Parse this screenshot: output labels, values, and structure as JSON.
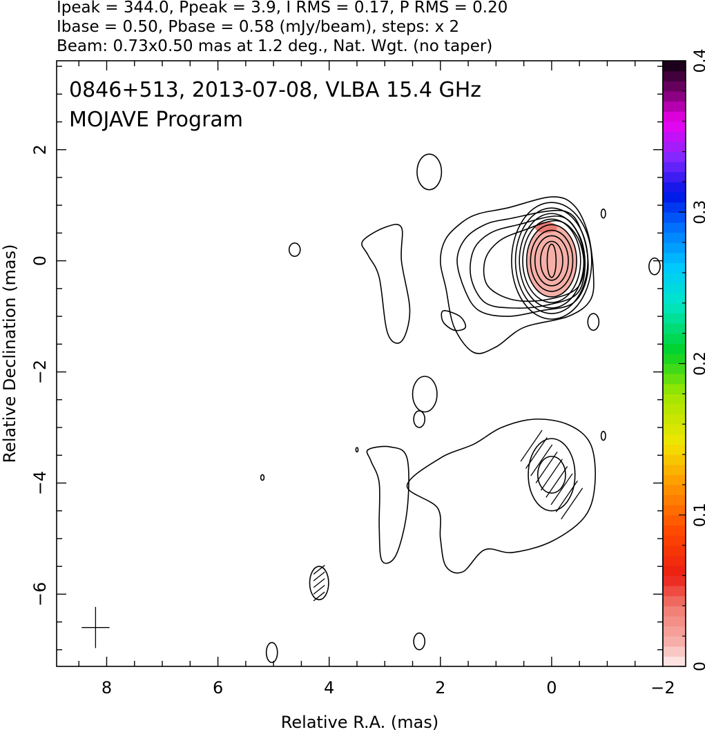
{
  "header": {
    "line1": "Ipeak = 344.0, Ppeak = 3.9, I RMS = 0.17, P RMS = 0.20",
    "line2": "Ibase = 0.50, Pbase = 0.58 (mJy/beam), steps: x 2",
    "line3": "Beam: 0.73x0.50 mas at 1.2 deg., Nat. Wgt. (no taper)"
  },
  "chart_data": {
    "type": "contour map",
    "title": "0846+513, 2013-07-08, VLBA 15.4 GHz",
    "subtitle": "MOJAVE Program",
    "xlabel": "Relative R.A. (mas)",
    "ylabel": "Relative Declination (mas)",
    "xlim": [
      8.9,
      -2.0
    ],
    "ylim": [
      -7.3,
      3.6
    ],
    "x_ticks": [
      8,
      6,
      4,
      2,
      0,
      -2
    ],
    "y_ticks": [
      2,
      0,
      -2,
      -4,
      -6
    ],
    "x_tick_labels": [
      "8",
      "6",
      "4",
      "2",
      "0",
      "−2"
    ],
    "y_tick_labels": [
      "2",
      "0",
      "−2",
      "−4",
      "−6"
    ],
    "colorbar": {
      "min": 0,
      "max": 0.4,
      "ticks": [
        0,
        0.1,
        0.2,
        0.3,
        0.4
      ],
      "tick_labels": [
        "0",
        "0.1",
        "0.2",
        "0.3",
        "0.4"
      ]
    },
    "core": {
      "x": 0.0,
      "y": 0.0,
      "contour_radii": [
        [
          0.08,
          0.3
        ],
        [
          0.2,
          0.35
        ],
        [
          0.3,
          0.45
        ],
        [
          0.38,
          0.55
        ],
        [
          0.45,
          0.65
        ],
        [
          0.52,
          0.75
        ],
        [
          0.58,
          0.85
        ],
        [
          0.65,
          0.95
        ],
        [
          0.72,
          1.05
        ]
      ]
    },
    "jet_contours": [
      [
        [
          0.8,
          0.95
        ],
        [
          1.3,
          0.85
        ],
        [
          1.6,
          0.7
        ],
        [
          1.9,
          0.4
        ],
        [
          2.0,
          0.0
        ],
        [
          1.9,
          -0.5
        ],
        [
          1.75,
          -1.2
        ],
        [
          1.4,
          -1.65
        ],
        [
          1.0,
          -1.55
        ],
        [
          0.5,
          -1.2
        ],
        [
          -0.3,
          -1.0
        ],
        [
          -0.7,
          -0.7
        ],
        [
          -0.75,
          -0.2
        ],
        [
          -0.65,
          0.5
        ],
        [
          -0.4,
          1.0
        ],
        [
          0.0,
          1.15
        ]
      ],
      [
        [
          0.8,
          0.75
        ],
        [
          1.2,
          0.65
        ],
        [
          1.55,
          0.4
        ],
        [
          1.7,
          0.0
        ],
        [
          1.55,
          -0.55
        ],
        [
          1.3,
          -0.9
        ],
        [
          0.8,
          -1.0
        ],
        [
          0.2,
          -0.9
        ],
        [
          -0.4,
          -0.75
        ],
        [
          -0.65,
          -0.2
        ],
        [
          -0.55,
          0.5
        ],
        [
          -0.2,
          0.9
        ]
      ],
      [
        [
          0.6,
          0.65
        ],
        [
          1.1,
          0.5
        ],
        [
          1.4,
          0.2
        ],
        [
          1.45,
          -0.3
        ],
        [
          1.2,
          -0.75
        ],
        [
          0.7,
          -0.85
        ],
        [
          0.1,
          -0.8
        ],
        [
          -0.45,
          -0.6
        ],
        [
          -0.6,
          -0.1
        ],
        [
          -0.5,
          0.45
        ],
        [
          -0.15,
          0.8
        ]
      ],
      [
        [
          0.5,
          0.55
        ],
        [
          0.95,
          0.35
        ],
        [
          1.2,
          0.0
        ],
        [
          1.15,
          -0.45
        ],
        [
          0.7,
          -0.7
        ],
        [
          0.1,
          -0.7
        ],
        [
          -0.45,
          -0.5
        ],
        [
          -0.58,
          -0.05
        ],
        [
          -0.45,
          0.45
        ],
        [
          -0.1,
          0.72
        ]
      ]
    ],
    "south_outer": [
      [
        1.4,
        -3.3
      ],
      [
        2.0,
        -3.55
      ],
      [
        2.6,
        -4.05
      ],
      [
        2.05,
        -4.45
      ],
      [
        2.0,
        -5.0
      ],
      [
        1.9,
        -5.5
      ],
      [
        1.6,
        -5.6
      ],
      [
        1.2,
        -5.2
      ],
      [
        0.7,
        -5.25
      ],
      [
        0.0,
        -5.05
      ],
      [
        -0.6,
        -4.6
      ],
      [
        -0.78,
        -4.0
      ],
      [
        -0.7,
        -3.3
      ],
      [
        -0.3,
        -2.95
      ],
      [
        0.3,
        -2.85
      ],
      [
        0.9,
        -3.0
      ]
    ],
    "south_inner": {
      "x": 0.0,
      "y": -3.85,
      "radii": [
        [
          0.42,
          0.65
        ],
        [
          0.25,
          0.33
        ]
      ]
    },
    "islands": [
      {
        "x": 2.2,
        "y": 1.6,
        "rx": 0.22,
        "ry": 0.32
      },
      {
        "x": 4.62,
        "y": 0.2,
        "rx": 0.1,
        "ry": 0.12
      },
      {
        "x": -0.93,
        "y": 0.85,
        "rx": 0.04,
        "ry": 0.08
      },
      {
        "x": -1.85,
        "y": -0.1,
        "rx": 0.1,
        "ry": 0.15
      },
      {
        "x": -0.75,
        "y": -1.1,
        "rx": 0.1,
        "ry": 0.15
      },
      {
        "x": 2.28,
        "y": -2.4,
        "rx": 0.22,
        "ry": 0.32
      },
      {
        "x": 2.38,
        "y": -2.85,
        "rx": 0.1,
        "ry": 0.15
      },
      {
        "x": -0.93,
        "y": -3.15,
        "rx": 0.04,
        "ry": 0.08
      },
      {
        "x": 4.18,
        "y": -5.8,
        "rx": 0.17,
        "ry": 0.3
      },
      {
        "x": 5.03,
        "y": -7.05,
        "rx": 0.1,
        "ry": 0.18
      },
      {
        "x": 2.38,
        "y": -6.85,
        "rx": 0.1,
        "ry": 0.15
      },
      {
        "x": 5.2,
        "y": -3.9,
        "rx": 0.03,
        "ry": 0.05
      },
      {
        "x": 3.5,
        "y": -3.4,
        "rx": 0.02,
        "ry": 0.04
      }
    ],
    "west_islands": [
      [
        [
          3.4,
          0.35
        ],
        [
          3.0,
          0.6
        ],
        [
          2.7,
          0.6
        ],
        [
          2.7,
          0.0
        ],
        [
          2.55,
          -0.9
        ],
        [
          2.7,
          -1.45
        ],
        [
          2.95,
          -1.3
        ],
        [
          3.1,
          -0.3
        ],
        [
          3.3,
          0.1
        ]
      ],
      [
        [
          3.3,
          -3.4
        ],
        [
          2.9,
          -3.35
        ],
        [
          2.6,
          -3.55
        ],
        [
          2.6,
          -4.5
        ],
        [
          2.8,
          -5.3
        ],
        [
          3.05,
          -5.4
        ],
        [
          3.1,
          -4.8
        ],
        [
          3.1,
          -4.0
        ],
        [
          3.25,
          -3.6
        ]
      ],
      [
        [
          1.95,
          -0.9
        ],
        [
          1.65,
          -1.0
        ],
        [
          1.55,
          -1.2
        ],
        [
          1.75,
          -1.25
        ],
        [
          1.95,
          -1.1
        ]
      ]
    ],
    "polarization_peak": {
      "x": 0.0,
      "y": 0.0,
      "rx": 0.45,
      "ry": 0.65
    },
    "beam_marker": {
      "x": 8.2,
      "y": -6.6
    },
    "colors": {
      "polarization_fill": "#f4b0a8",
      "polarization_core": "#e87b73",
      "contour": "#000000"
    }
  }
}
